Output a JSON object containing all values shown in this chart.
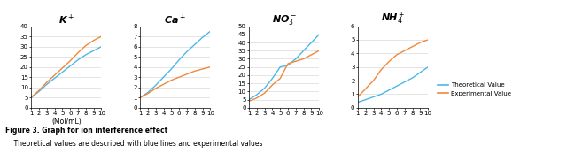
{
  "subplots": [
    {
      "title": "K$^+$",
      "ylim": [
        0,
        40
      ],
      "yticks": [
        0,
        5,
        10,
        15,
        20,
        25,
        30,
        35,
        40
      ],
      "theoretical": [
        5.0,
        8.0,
        11.5,
        14.5,
        17.5,
        20.5,
        23.5,
        26.0,
        28.0,
        30.0
      ],
      "experimental": [
        5.0,
        8.5,
        12.5,
        16.0,
        19.5,
        23.0,
        27.0,
        30.5,
        33.0,
        35.0
      ]
    },
    {
      "title": "Ca$^+$",
      "ylim": [
        0,
        8
      ],
      "yticks": [
        0,
        1,
        2,
        3,
        4,
        5,
        6,
        7,
        8
      ],
      "theoretical": [
        1.0,
        1.5,
        2.2,
        3.0,
        3.8,
        4.7,
        5.5,
        6.2,
        6.9,
        7.5
      ],
      "experimental": [
        1.0,
        1.4,
        1.9,
        2.3,
        2.7,
        3.0,
        3.3,
        3.6,
        3.8,
        4.0
      ]
    },
    {
      "title": "NO$_3^-$",
      "ylim": [
        0,
        50
      ],
      "yticks": [
        0,
        5,
        10,
        15,
        20,
        25,
        30,
        35,
        40,
        45,
        50
      ],
      "theoretical": [
        5.0,
        8.0,
        12.0,
        18.0,
        25.0,
        26.0,
        30.0,
        35.0,
        40.0,
        45.0
      ],
      "experimental": [
        4.0,
        6.0,
        9.0,
        14.0,
        18.0,
        27.0,
        28.5,
        30.0,
        32.5,
        35.0
      ]
    },
    {
      "title": "NH$_4^+$",
      "ylim": [
        0,
        6
      ],
      "yticks": [
        0,
        1,
        2,
        3,
        4,
        5,
        6
      ],
      "theoretical": [
        0.4,
        0.6,
        0.8,
        1.0,
        1.3,
        1.6,
        1.9,
        2.2,
        2.6,
        3.0
      ],
      "experimental": [
        0.8,
        1.4,
        2.0,
        2.8,
        3.4,
        3.9,
        4.2,
        4.5,
        4.8,
        5.0
      ]
    }
  ],
  "x": [
    1,
    2,
    3,
    4,
    5,
    6,
    7,
    8,
    9,
    10
  ],
  "xlabel": "(Mol/mL)",
  "color_theoretical": "#4db8e8",
  "color_experimental": "#f0883a",
  "legend_theoretical": "Theoretical Value",
  "legend_experimental": "Experimental Value",
  "figure_caption_bold": "Figure 3. Graph for ion interference effect",
  "figure_caption_normal": "    Theoretical values are described with blue lines and experimental values",
  "title_fontsize": 8,
  "tick_fontsize": 5,
  "linewidth": 1.0
}
